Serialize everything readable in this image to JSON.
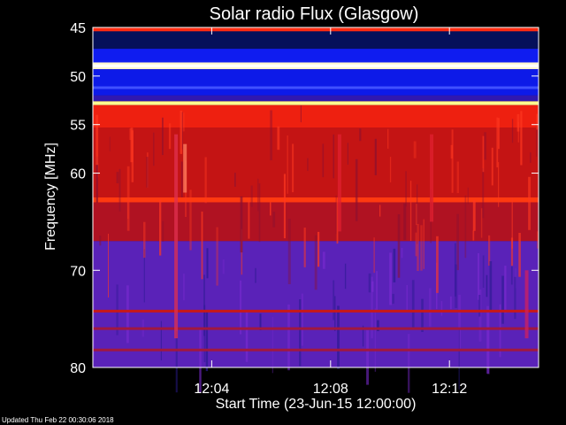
{
  "chart_data": {
    "type": "heatmap",
    "title": "Solar radio Flux (Glasgow)",
    "xlabel": "Start Time (23-Jun-15 12:00:00)",
    "ylabel": "Frequency [MHz]",
    "x_unit": "minutes after 12:00:00",
    "xlim": [
      0,
      15
    ],
    "ylim": [
      45,
      80
    ],
    "y_reversed": true,
    "x_ticks": [
      {
        "value": 4,
        "label": "12:04"
      },
      {
        "value": 8,
        "label": "12:08"
      },
      {
        "value": 12,
        "label": "12:12"
      }
    ],
    "y_ticks": [
      {
        "value": 45,
        "label": "45"
      },
      {
        "value": 50,
        "label": "50"
      },
      {
        "value": 55,
        "label": "55"
      },
      {
        "value": 60,
        "label": "60"
      },
      {
        "value": 70,
        "label": "70"
      },
      {
        "value": 80,
        "label": "80"
      }
    ],
    "colormap": [
      "#000030",
      "#1010ff",
      "#6a1aa0",
      "#c01010",
      "#ff3010",
      "#ffff80",
      "#ffffff"
    ],
    "bands": [
      {
        "from": 45.0,
        "to": 45.4,
        "color": "#ff2a10"
      },
      {
        "from": 45.4,
        "to": 47.2,
        "color": "#05105a"
      },
      {
        "from": 47.2,
        "to": 48.6,
        "color": "#0f1cf0"
      },
      {
        "from": 48.6,
        "to": 49.3,
        "color": "#fff6d0"
      },
      {
        "from": 49.3,
        "to": 52.0,
        "color": "#0d1ae8"
      },
      {
        "from": 52.0,
        "to": 52.6,
        "color": "#3018b0"
      },
      {
        "from": 52.6,
        "to": 53.0,
        "color": "#ffe070"
      },
      {
        "from": 53.0,
        "to": 55.3,
        "color": "#ee2010"
      },
      {
        "from": 55.3,
        "to": 62.5,
        "color": "#c41414"
      },
      {
        "from": 62.5,
        "to": 63.0,
        "color": "#ff3a10"
      },
      {
        "from": 63.0,
        "to": 67.0,
        "color": "#b01222"
      },
      {
        "from": 67.0,
        "to": 80.0,
        "color": "#5a22b8"
      }
    ],
    "lines": [
      {
        "freq": 48.95,
        "color": "#ffffff"
      },
      {
        "freq": 52.8,
        "color": "#ffff90"
      },
      {
        "freq": 51.2,
        "color": "#4050ff"
      },
      {
        "freq": 74.2,
        "color": "#c81818"
      },
      {
        "freq": 76.0,
        "color": "#a01840"
      },
      {
        "freq": 78.2,
        "color": "#a01840"
      }
    ],
    "bursts": [
      {
        "x": 2.8,
        "f_from": 56,
        "f_to": 77,
        "color": "#e03050"
      },
      {
        "x": 3.1,
        "f_from": 57,
        "f_to": 62,
        "color": "#ff8060"
      },
      {
        "x": 8.3,
        "f_from": 56,
        "f_to": 66,
        "color": "#e02030"
      },
      {
        "x": 11.4,
        "f_from": 56,
        "f_to": 65,
        "color": "#e02030"
      },
      {
        "x": 14.6,
        "f_from": 70,
        "f_to": 77,
        "color": "#d02060"
      }
    ],
    "grid": false,
    "legend": "none"
  },
  "footer": {
    "updated": "Updated Thu Feb 22 00:30:06 2018"
  }
}
